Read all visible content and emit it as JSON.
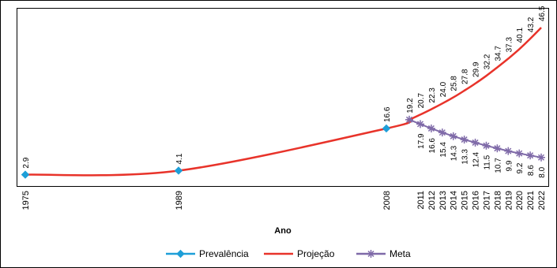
{
  "chart_data": {
    "type": "line",
    "title": "",
    "xlabel": "Ano",
    "ylabel": "",
    "x_ticks": [
      "1975",
      "1989",
      "2008",
      "2011",
      "2012",
      "2013",
      "2014",
      "2015",
      "2016",
      "2017",
      "2018",
      "2019",
      "2020",
      "2021",
      "2022"
    ],
    "grid": false,
    "legend_position": "bottom",
    "series": [
      {
        "name": "Prevalência",
        "color": "#1e9fd8",
        "marker": "diamond",
        "x": [
          1975,
          1989,
          2008
        ],
        "y": [
          2.9,
          4.1,
          16.6
        ],
        "labels": [
          "2.9",
          "4.1",
          "16.6"
        ]
      },
      {
        "name": "Projeção",
        "color": "#e8332a",
        "marker": "none",
        "x": [
          1975,
          1989,
          2008,
          2010,
          2011,
          2012,
          2013,
          2014,
          2015,
          2016,
          2017,
          2018,
          2019,
          2020,
          2021,
          2022
        ],
        "y": [
          2.9,
          4.1,
          16.6,
          19.2,
          20.7,
          22.3,
          24.0,
          25.8,
          27.8,
          29.9,
          32.2,
          34.7,
          37.3,
          40.1,
          43.2,
          46.5
        ],
        "labels": [
          "19.2",
          "20.7",
          "22.3",
          "24.0",
          "25.8",
          "27.8",
          "29.9",
          "32.2",
          "34.7",
          "37.3",
          "40.1",
          "43.2",
          "46.5"
        ]
      },
      {
        "name": "Meta",
        "color": "#7f6aa8",
        "marker": "star",
        "x": [
          2010,
          2011,
          2012,
          2013,
          2014,
          2015,
          2016,
          2017,
          2018,
          2019,
          2020,
          2021,
          2022
        ],
        "y": [
          19.2,
          17.9,
          16.6,
          15.4,
          14.3,
          13.3,
          12.4,
          11.5,
          10.7,
          9.9,
          9.2,
          8.6,
          8.0
        ],
        "labels": [
          "17.9",
          "16.6",
          "15.4",
          "14.3",
          "13.3",
          "12.4",
          "11.5",
          "10.7",
          "9.9",
          "9.2",
          "8.6",
          "8.0"
        ]
      }
    ]
  }
}
